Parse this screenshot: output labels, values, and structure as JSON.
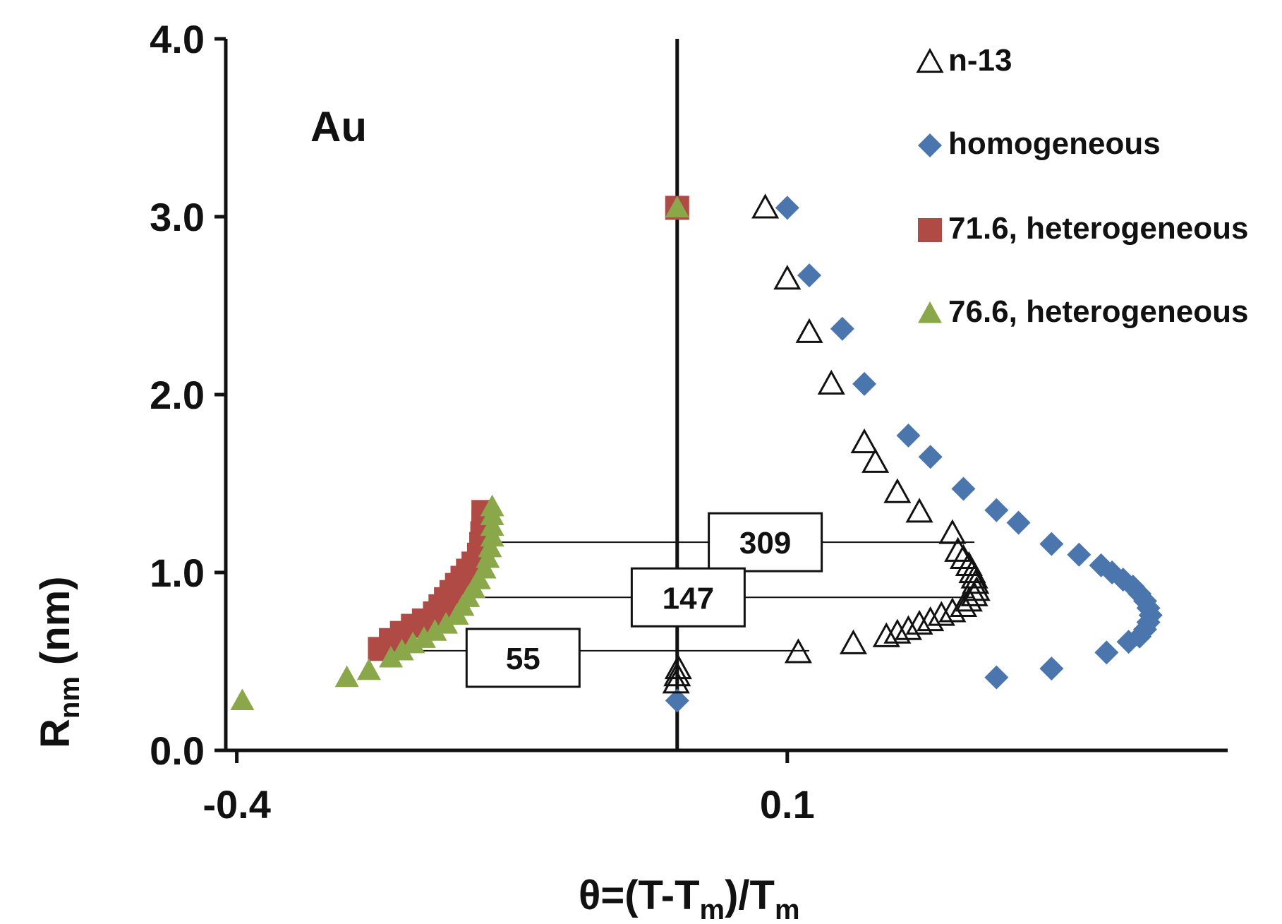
{
  "chart_data": {
    "type": "scatter",
    "annotation": "Au",
    "ylabel_main": "R",
    "ylabel_sub": "nm",
    "ylabel_unit": "(nm)",
    "xlabel_parts": [
      "θ=(T-T",
      "m",
      ")/T",
      "m"
    ],
    "x_ticks": [
      -0.4,
      0.1
    ],
    "x_tick_labels": [
      "-0.4",
      "0.1"
    ],
    "y_ticks": [
      0,
      1,
      2,
      3,
      4
    ],
    "y_tick_labels": [
      "0.0",
      "1.0",
      "2.0",
      "3.0",
      "4.0"
    ],
    "xlim": [
      -0.41,
      0.5
    ],
    "ylim": [
      0,
      4
    ],
    "vline_x": 0,
    "grid": false,
    "legend_position": "top-right",
    "colors": {
      "n13": "#111111",
      "homogeneous": "#4a76ad",
      "het716": "#b04a45",
      "het766": "#8aa84a",
      "highlight_orange": "#e0883a"
    },
    "series": [
      {
        "name": "n-13",
        "marker": "open-triangle",
        "points": [
          [
            -0.001,
            0.38
          ],
          [
            0.0,
            0.42
          ],
          [
            0.001,
            0.46
          ],
          [
            0.11,
            0.55
          ],
          [
            0.16,
            0.6
          ],
          [
            0.19,
            0.64
          ],
          [
            0.2,
            0.66
          ],
          [
            0.21,
            0.68
          ],
          [
            0.22,
            0.71
          ],
          [
            0.23,
            0.73
          ],
          [
            0.24,
            0.76
          ],
          [
            0.25,
            0.78
          ],
          [
            0.26,
            0.81
          ],
          [
            0.265,
            0.84
          ],
          [
            0.27,
            0.87
          ],
          [
            0.272,
            0.9
          ],
          [
            0.271,
            0.94
          ],
          [
            0.27,
            0.97
          ],
          [
            0.268,
            1.0
          ],
          [
            0.265,
            1.04
          ],
          [
            0.26,
            1.08
          ],
          [
            0.255,
            1.12
          ],
          [
            0.25,
            1.22
          ],
          [
            0.22,
            1.34
          ],
          [
            0.2,
            1.45
          ],
          [
            0.18,
            1.62
          ],
          [
            0.17,
            1.73
          ],
          [
            0.14,
            2.06
          ],
          [
            0.12,
            2.35
          ],
          [
            0.1,
            2.65
          ],
          [
            0.08,
            3.05
          ]
        ]
      },
      {
        "name": "homogeneous",
        "marker": "diamond",
        "points": [
          [
            0.0,
            0.28
          ],
          [
            0.29,
            0.41
          ],
          [
            0.34,
            0.46
          ],
          [
            0.39,
            0.55
          ],
          [
            0.41,
            0.61
          ],
          [
            0.42,
            0.64
          ],
          [
            0.425,
            0.68
          ],
          [
            0.428,
            0.72
          ],
          [
            0.43,
            0.76
          ],
          [
            0.428,
            0.8
          ],
          [
            0.425,
            0.84
          ],
          [
            0.42,
            0.88
          ],
          [
            0.414,
            0.92
          ],
          [
            0.405,
            0.96
          ],
          [
            0.395,
            1.0
          ],
          [
            0.385,
            1.04
          ],
          [
            0.365,
            1.1
          ],
          [
            0.34,
            1.16
          ],
          [
            0.31,
            1.28
          ],
          [
            0.29,
            1.35
          ],
          [
            0.26,
            1.47
          ],
          [
            0.23,
            1.65
          ],
          [
            0.21,
            1.77
          ],
          [
            0.17,
            2.06
          ],
          [
            0.15,
            2.37
          ],
          [
            0.12,
            2.67
          ],
          [
            0.1,
            3.05
          ]
        ]
      },
      {
        "name": "71.6, heterogeneous",
        "marker": "square",
        "points": [
          [
            -0.27,
            0.57
          ],
          [
            -0.26,
            0.62
          ],
          [
            -0.25,
            0.66
          ],
          [
            -0.24,
            0.7
          ],
          [
            -0.23,
            0.73
          ],
          [
            -0.22,
            0.77
          ],
          [
            -0.215,
            0.81
          ],
          [
            -0.21,
            0.85
          ],
          [
            -0.205,
            0.89
          ],
          [
            -0.2,
            0.93
          ],
          [
            -0.195,
            0.97
          ],
          [
            -0.19,
            1.01
          ],
          [
            -0.185,
            1.05
          ],
          [
            -0.18,
            1.1
          ],
          [
            -0.178,
            1.16
          ],
          [
            -0.177,
            1.22
          ],
          [
            -0.176,
            1.28
          ],
          [
            -0.176,
            1.34
          ],
          [
            0.0,
            3.05
          ]
        ]
      },
      {
        "name": "76.6, heterogeneous",
        "marker": "triangle",
        "points": [
          [
            -0.395,
            0.28
          ],
          [
            -0.3,
            0.41
          ],
          [
            -0.28,
            0.45
          ],
          [
            -0.26,
            0.52
          ],
          [
            -0.25,
            0.56
          ],
          [
            -0.24,
            0.6
          ],
          [
            -0.23,
            0.63
          ],
          [
            -0.22,
            0.67
          ],
          [
            -0.21,
            0.71
          ],
          [
            -0.2,
            0.76
          ],
          [
            -0.195,
            0.81
          ],
          [
            -0.19,
            0.86
          ],
          [
            -0.185,
            0.91
          ],
          [
            -0.18,
            0.96
          ],
          [
            -0.175,
            1.02
          ],
          [
            -0.172,
            1.08
          ],
          [
            -0.17,
            1.14
          ],
          [
            -0.168,
            1.2
          ],
          [
            -0.168,
            1.26
          ],
          [
            -0.168,
            1.32
          ],
          [
            -0.168,
            1.37
          ],
          [
            0.0,
            3.05
          ]
        ]
      }
    ],
    "bracket_lines": [
      {
        "label": "309",
        "y": 1.17,
        "x_from": -0.17,
        "x_to": 0.27,
        "box_x": 0.08,
        "box_y": 1.17
      },
      {
        "label": "147",
        "y": 0.86,
        "x_from": -0.2,
        "x_to": 0.27,
        "box_x": 0.01,
        "box_y": 0.86
      },
      {
        "label": "55",
        "y": 0.56,
        "x_from": -0.26,
        "x_to": 0.12,
        "box_x": -0.14,
        "box_y": 0.52
      }
    ]
  }
}
